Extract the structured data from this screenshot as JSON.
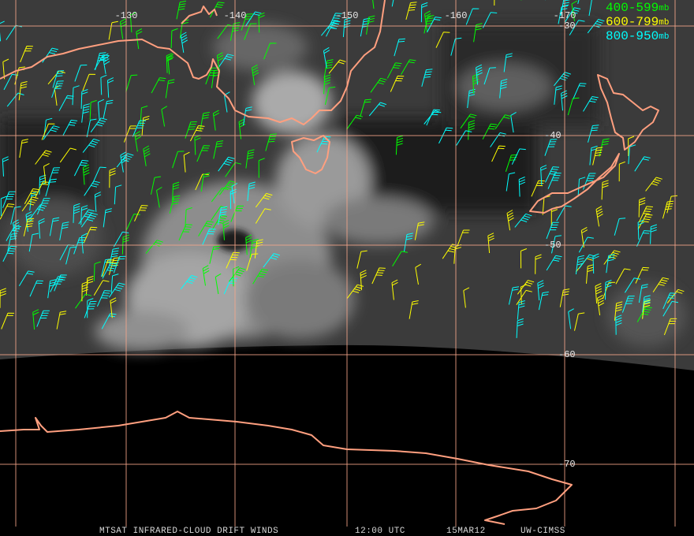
{
  "grid": {
    "longitudes": [
      "-130",
      "-140",
      "-150",
      "-160",
      "-170"
    ],
    "latitudes": [
      "-30",
      "-40",
      "-50",
      "-60",
      "-70"
    ]
  },
  "legend": [
    {
      "range": "400-599",
      "unit": "mb",
      "color": "#00ff00"
    },
    {
      "range": "600-799",
      "unit": "mb",
      "color": "#ffff00"
    },
    {
      "range": "800-950",
      "unit": "mb",
      "color": "#00ffff"
    }
  ],
  "footer": {
    "product": "MTSAT INFRARED-CLOUD DRIFT WINDS",
    "time": "12:00 UTC",
    "date": "15MAR12",
    "source": "UW-CIMSS"
  }
}
